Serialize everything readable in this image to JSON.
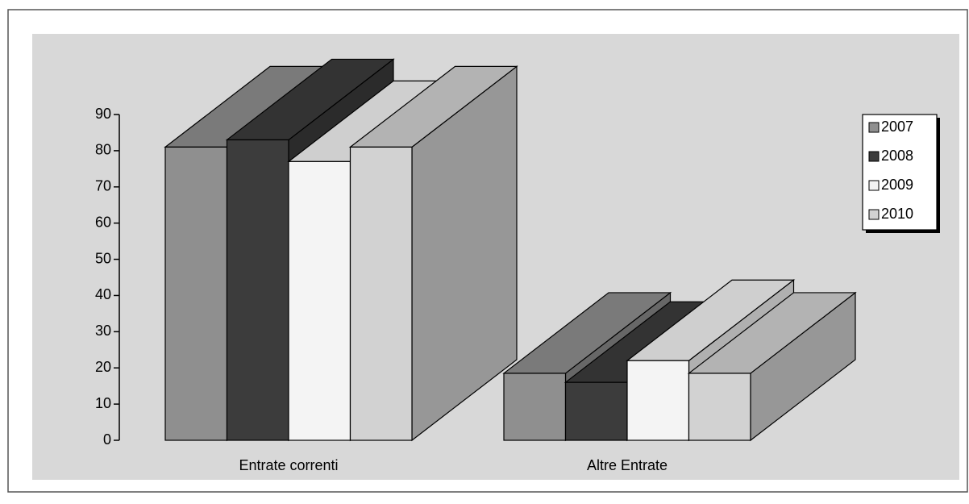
{
  "chart_data": {
    "type": "bar3d",
    "categories": [
      "Entrate correnti",
      "Altre Entrate"
    ],
    "series": [
      {
        "name": "2007",
        "color": "#8f8f8f",
        "values": [
          81,
          18.5
        ]
      },
      {
        "name": "2008",
        "color": "#3c3c3c",
        "values": [
          83,
          16
        ]
      },
      {
        "name": "2009",
        "color": "#f4f4f4",
        "values": [
          77,
          22
        ]
      },
      {
        "name": "2010",
        "color": "#d2d2d2",
        "values": [
          81,
          18.5
        ]
      }
    ],
    "ylim": [
      0,
      90
    ],
    "yticks": [
      0,
      10,
      20,
      30,
      40,
      50,
      60,
      70,
      80,
      90
    ],
    "legend": "right"
  }
}
